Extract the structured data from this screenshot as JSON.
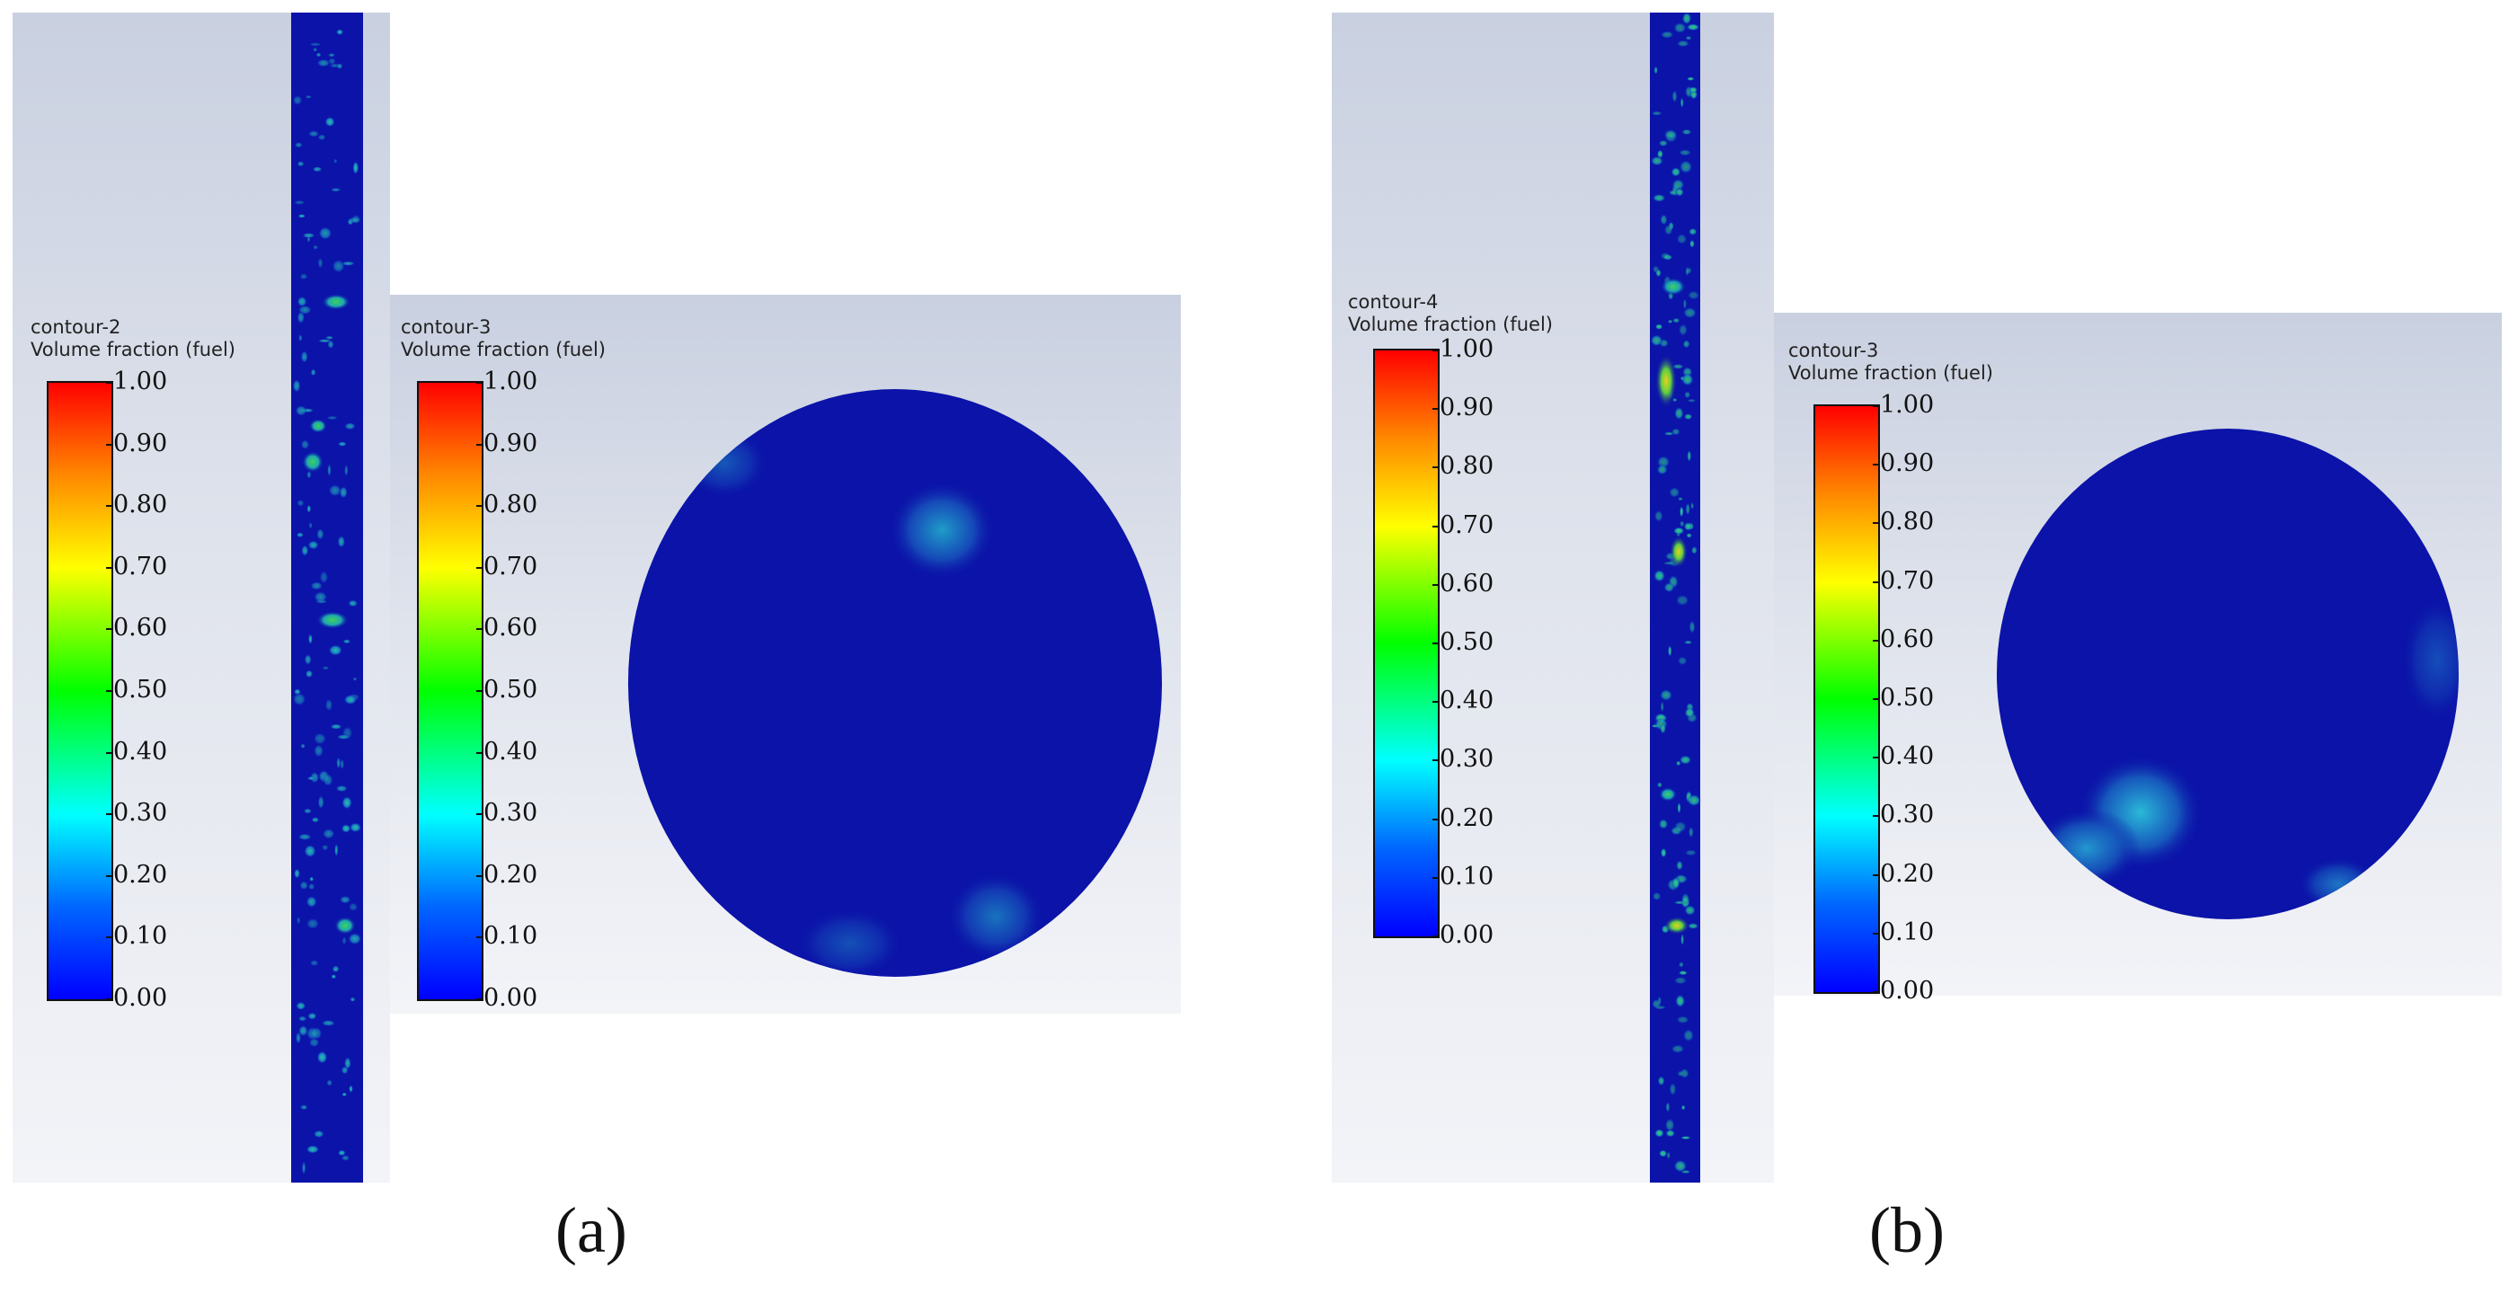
{
  "legend_ticks": [
    "1.00",
    "0.90",
    "0.80",
    "0.70",
    "0.60",
    "0.50",
    "0.40",
    "0.30",
    "0.20",
    "0.10",
    "0.00"
  ],
  "panels": {
    "a": {
      "caption": "(a)",
      "legend_left": {
        "title": "contour-2",
        "subtitle": "Volume fraction (fuel)"
      },
      "legend_right": {
        "title": "contour-3",
        "subtitle": "Volume fraction (fuel)"
      }
    },
    "b": {
      "caption": "(b)",
      "legend_left": {
        "title": "contour-4",
        "subtitle": "Volume fraction (fuel)"
      },
      "legend_right": {
        "title": "contour-3",
        "subtitle": "Volume fraction (fuel)"
      }
    }
  },
  "colors": {
    "field_blue": "#0b13a8",
    "colormap": [
      "#ff0000",
      "#ff8800",
      "#ffff00",
      "#00ff00",
      "#00ffff",
      "#0066ff",
      "#0000ff"
    ]
  }
}
